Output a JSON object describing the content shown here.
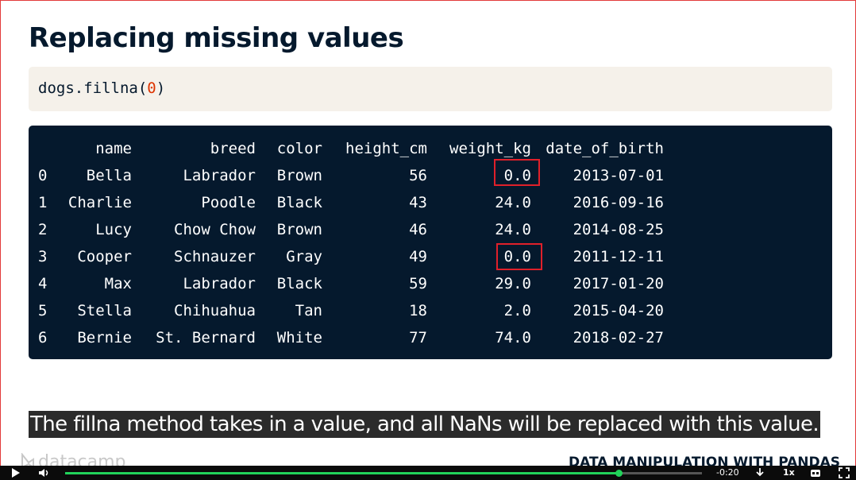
{
  "slide": {
    "title": "Replacing missing values",
    "code": {
      "prefix": "dogs.fillna(",
      "arg": "0",
      "suffix": ")"
    },
    "table": {
      "columns": [
        "",
        "name",
        "breed",
        "color",
        "height_cm",
        "weight_kg",
        "date_of_birth"
      ],
      "rows": [
        [
          "0",
          "Bella",
          "Labrador",
          "Brown",
          "56",
          "0.0",
          "2013-07-01"
        ],
        [
          "1",
          "Charlie",
          "Poodle",
          "Black",
          "43",
          "24.0",
          "2016-09-16"
        ],
        [
          "2",
          "Lucy",
          "Chow Chow",
          "Brown",
          "46",
          "24.0",
          "2014-08-25"
        ],
        [
          "3",
          "Cooper",
          "Schnauzer",
          "Gray",
          "49",
          "0.0",
          "2011-12-11"
        ],
        [
          "4",
          "Max",
          "Labrador",
          "Black",
          "59",
          "29.0",
          "2017-01-20"
        ],
        [
          "5",
          "Stella",
          "Chihuahua",
          "Tan",
          "18",
          "2.0",
          "2015-04-20"
        ],
        [
          "6",
          "Bernie",
          "St. Bernard",
          "White",
          "77",
          "74.0",
          "2018-02-27"
        ]
      ]
    },
    "highlighted_rows": [
      0,
      3
    ],
    "caption": "The fillna method takes in a value, and all NaNs will be replaced with this value.",
    "brand": "datacamp",
    "course_title": "DATA MANIPULATION WITH PANDAS"
  },
  "player": {
    "time": "-0:20",
    "speed": "1x",
    "progress": 0.869,
    "icons": [
      "play-icon",
      "volume-icon",
      "download-icon",
      "captions-icon",
      "fullscreen-icon"
    ]
  },
  "colors": {
    "title": "#05192d",
    "code_bg": "#f5f1ea",
    "output_bg": "#05192d",
    "highlight": "#e0202a",
    "progress": "#21d35a"
  }
}
